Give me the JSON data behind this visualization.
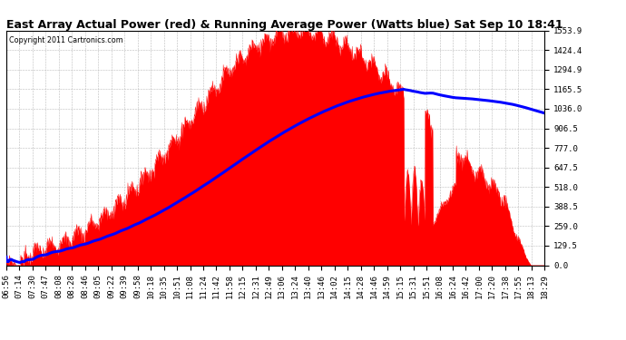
{
  "title": "East Array Actual Power (red) & Running Average Power (Watts blue) Sat Sep 10 18:41",
  "copyright": "Copyright 2011 Cartronics.com",
  "ylabel_right_ticks": [
    0.0,
    129.5,
    259.0,
    388.5,
    518.0,
    647.5,
    777.0,
    906.5,
    1036.0,
    1165.5,
    1294.9,
    1424.4,
    1553.9
  ],
  "ymax": 1553.9,
  "ymin": 0.0,
  "x_labels": [
    "06:56",
    "07:14",
    "07:30",
    "07:47",
    "08:08",
    "08:28",
    "08:46",
    "09:05",
    "09:22",
    "09:39",
    "09:58",
    "10:18",
    "10:35",
    "10:51",
    "11:08",
    "11:24",
    "11:42",
    "11:58",
    "12:15",
    "12:31",
    "12:49",
    "13:06",
    "13:24",
    "13:40",
    "13:46",
    "14:02",
    "14:15",
    "14:28",
    "14:46",
    "14:59",
    "15:15",
    "15:31",
    "15:51",
    "16:08",
    "16:24",
    "16:42",
    "17:00",
    "17:20",
    "17:38",
    "17:55",
    "18:13",
    "18:29"
  ],
  "bg_color": "#ffffff",
  "plot_bg_color": "#ffffff",
  "grid_color": "#bbbbbb",
  "actual_color": "#ff0000",
  "avg_color": "#0000ff",
  "title_fontsize": 9,
  "tick_fontsize": 6.5,
  "avg_peak_watts": 1165.0,
  "actual_peak_watts": 1553.9
}
